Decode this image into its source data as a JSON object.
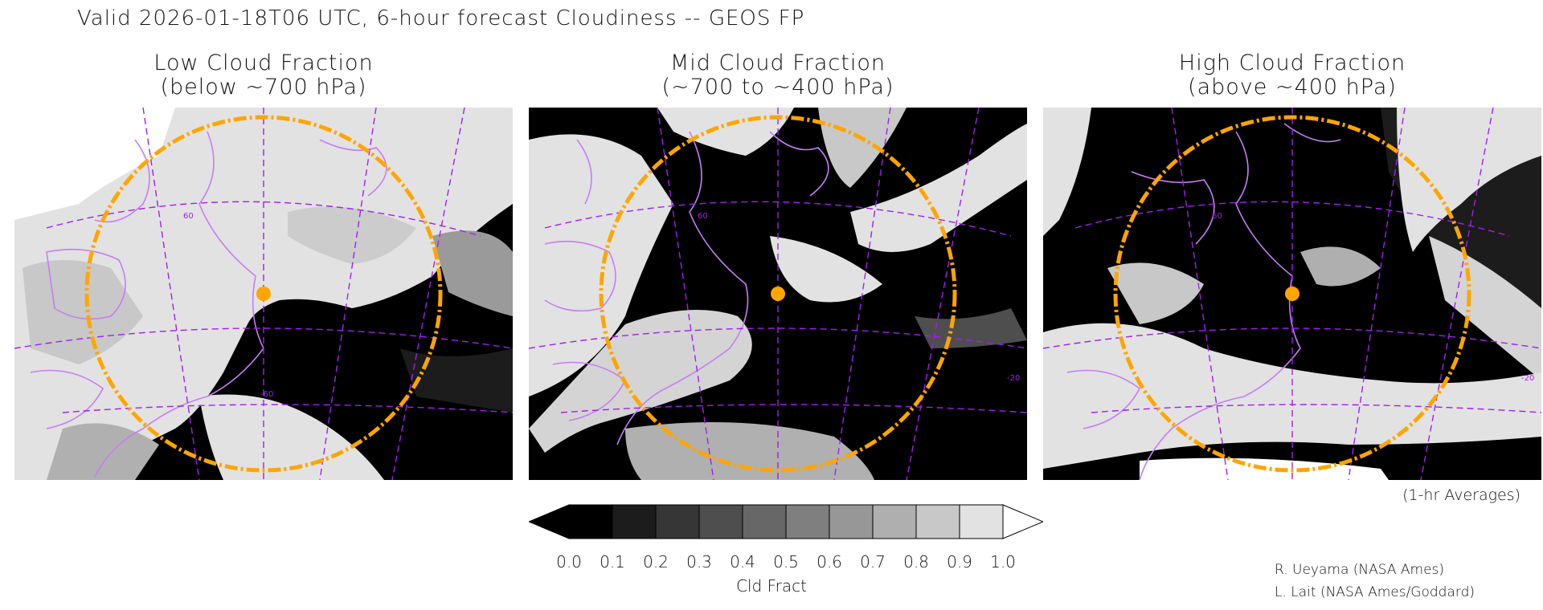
{
  "title": "Valid 2026-01-18T06 UTC, 6-hour forecast Cloudiness -- GEOS FP",
  "panels": [
    {
      "line1": "Low Cloud Fraction",
      "line2": "(below ~700 hPa)",
      "lat_label": "60",
      "lon_label": "-60"
    },
    {
      "line1": "Mid Cloud Fraction",
      "line2": "(~700 to ~400 hPa)",
      "lat_label": "60",
      "lon_label": "-20"
    },
    {
      "line1": "High Cloud Fraction",
      "line2": "(above ~400 hPa)",
      "lat_label": "60",
      "lon_label": "-20"
    }
  ],
  "averages_note": "(1-hr Averages)",
  "colorbar": {
    "ticks": [
      "0.0",
      "0.1",
      "0.2",
      "0.3",
      "0.4",
      "0.5",
      "0.6",
      "0.7",
      "0.8",
      "0.9",
      "1.0"
    ],
    "colors": [
      "#000000",
      "#1c1c1c",
      "#363636",
      "#4e4e4e",
      "#676767",
      "#7f7f7f",
      "#979797",
      "#afafaf",
      "#c8c8c8",
      "#e2e2e2"
    ],
    "label": "Cld Fract"
  },
  "credits": [
    "R. Ueyama (NASA Ames)",
    "L. Lait (NASA Ames/Goddard)"
  ],
  "colors": {
    "coastline": "#c77df5",
    "graticule": "#a020f0",
    "range_ring": "#ffa500",
    "marker": "#ffa500"
  }
}
